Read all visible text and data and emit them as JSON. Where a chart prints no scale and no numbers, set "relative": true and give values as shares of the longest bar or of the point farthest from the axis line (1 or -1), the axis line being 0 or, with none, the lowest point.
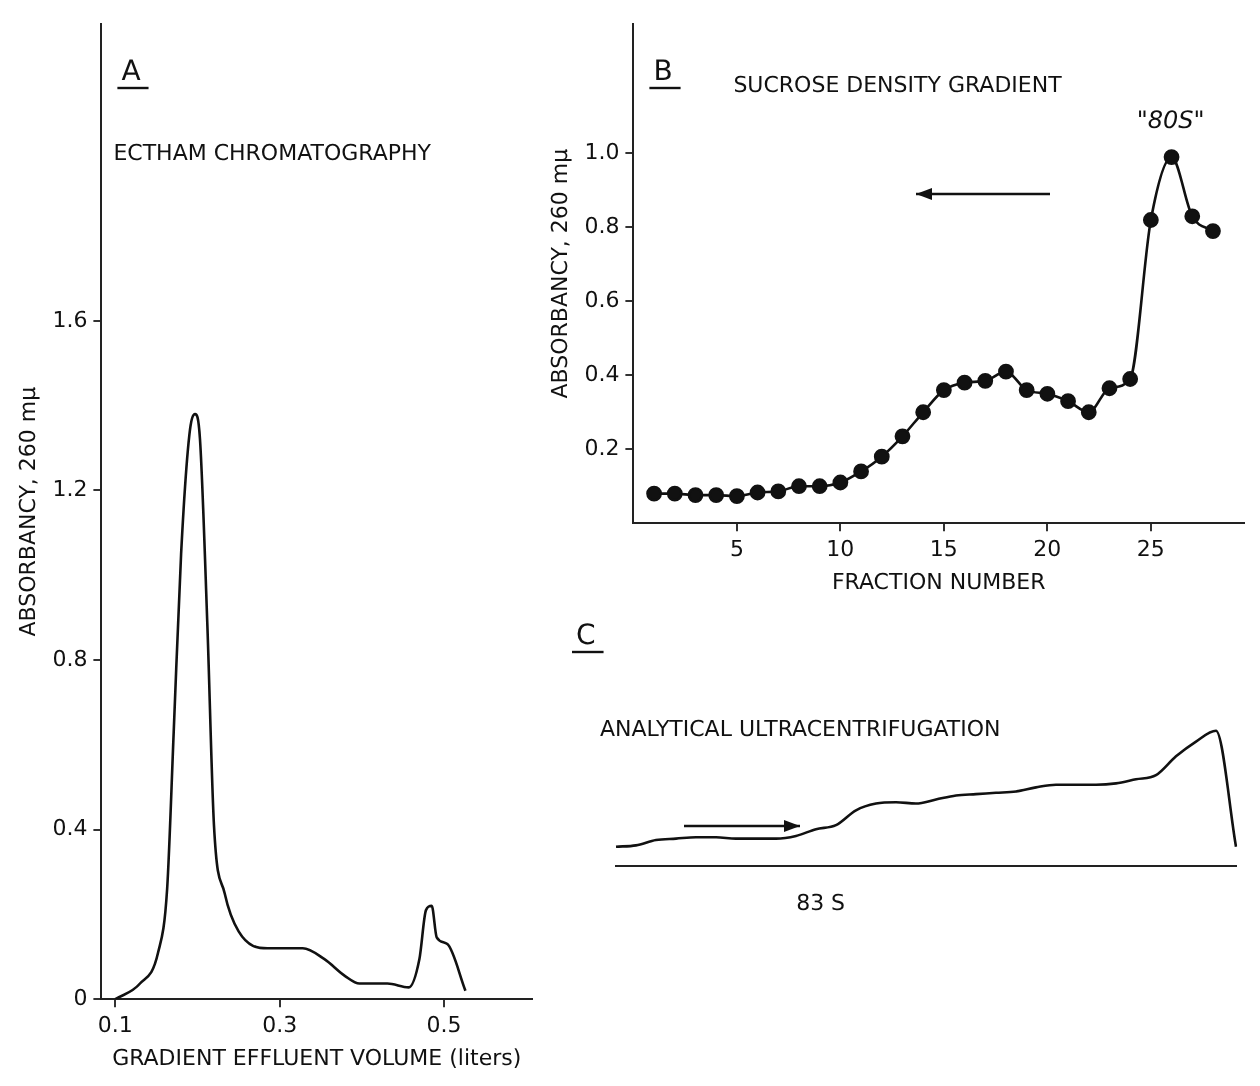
{
  "chart_data": [
    {
      "type": "line",
      "title": "A",
      "subtitle": "ECTHAM CHROMATOGRAPHY",
      "xlabel": "GRADIENT EFFLUENT VOLUME (liters)",
      "ylabel": "ABSORBANCY, 260 mμ",
      "marker": "none",
      "grid": false,
      "legend": false,
      "x": [
        0.1,
        0.13,
        0.152,
        0.163,
        0.171,
        0.18,
        0.19,
        0.197,
        0.203,
        0.212,
        0.22,
        0.233,
        0.25,
        0.285,
        0.328,
        0.354,
        0.38,
        0.397,
        0.431,
        0.457,
        0.47,
        0.478,
        0.485,
        0.491,
        0.504,
        0.526
      ],
      "series": [
        {
          "color": "#111111",
          "values": [
            0,
            0.037,
            0.11,
            0.26,
            0.63,
            1.05,
            1.33,
            1.38,
            1.32,
            0.88,
            0.41,
            0.25,
            0.16,
            0.12,
            0.12,
            0.095,
            0.054,
            0.037,
            0.037,
            0.028,
            0.095,
            0.21,
            0.22,
            0.146,
            0.13,
            0.02
          ]
        }
      ],
      "xlim": [
        0.083,
        0.607
      ],
      "xticks": [
        0.1,
        0.3,
        0.5
      ],
      "ylim": [
        0,
        2.3
      ],
      "yticks": [
        0,
        0.4,
        0.8,
        1.2,
        1.6
      ]
    },
    {
      "type": "line",
      "title": "B",
      "subtitle": "SUCROSE DENSITY GRADIENT",
      "xlabel": "FRACTION NUMBER",
      "ylabel": "ABSORBANCY, 260 mμ",
      "marker": "circle",
      "grid": false,
      "legend": false,
      "annotations": [
        "\"80S\""
      ],
      "x": [
        1,
        2,
        3,
        4,
        5,
        6,
        7,
        8,
        9,
        10,
        11,
        12,
        13,
        14,
        15,
        16,
        17,
        18,
        19,
        20,
        21,
        22,
        23,
        24,
        25,
        26,
        27,
        28
      ],
      "series": [
        {
          "color": "#111111",
          "values": [
            0.08,
            0.08,
            0.076,
            0.076,
            0.073,
            0.083,
            0.086,
            0.1,
            0.1,
            0.11,
            0.14,
            0.18,
            0.235,
            0.3,
            0.36,
            0.38,
            0.385,
            0.41,
            0.36,
            0.35,
            0.33,
            0.3,
            0.365,
            0.39,
            0.82,
            0.99,
            0.83,
            0.79
          ]
        }
      ],
      "xlim": [
        0,
        29.5
      ],
      "xticks": [
        5,
        10,
        15,
        20,
        25
      ],
      "ylim": [
        0,
        1.35
      ],
      "yticks": [
        0.2,
        0.4,
        0.6,
        0.8,
        {
          "value": 1.0,
          "label": "1.0"
        }
      ]
    },
    {
      "type": "line",
      "title": "C",
      "subtitle": "ANALYTICAL ULTRACENTRIFUGATION",
      "relative": true,
      "marker": "none",
      "legend": false,
      "annotations": [
        "83 S"
      ],
      "categories": [
        null,
        null,
        null,
        null,
        null,
        null,
        null,
        null,
        null,
        null,
        null,
        null,
        null,
        null,
        null,
        null,
        null,
        null,
        null,
        null,
        null,
        null,
        null,
        null,
        null,
        null,
        null,
        null,
        null,
        null,
        null,
        null
      ],
      "series": [
        {
          "color": "#111111",
          "values": [
            0.14,
            0.15,
            0.19,
            0.2,
            0.21,
            0.21,
            0.2,
            0.2,
            0.2,
            0.22,
            0.27,
            0.3,
            0.41,
            0.46,
            0.47,
            0.46,
            0.49,
            0.52,
            0.53,
            0.54,
            0.55,
            0.58,
            0.6,
            0.6,
            0.6,
            0.61,
            0.64,
            0.67,
            0.81,
            0.92,
            1,
            0.14
          ]
        }
      ]
    }
  ]
}
